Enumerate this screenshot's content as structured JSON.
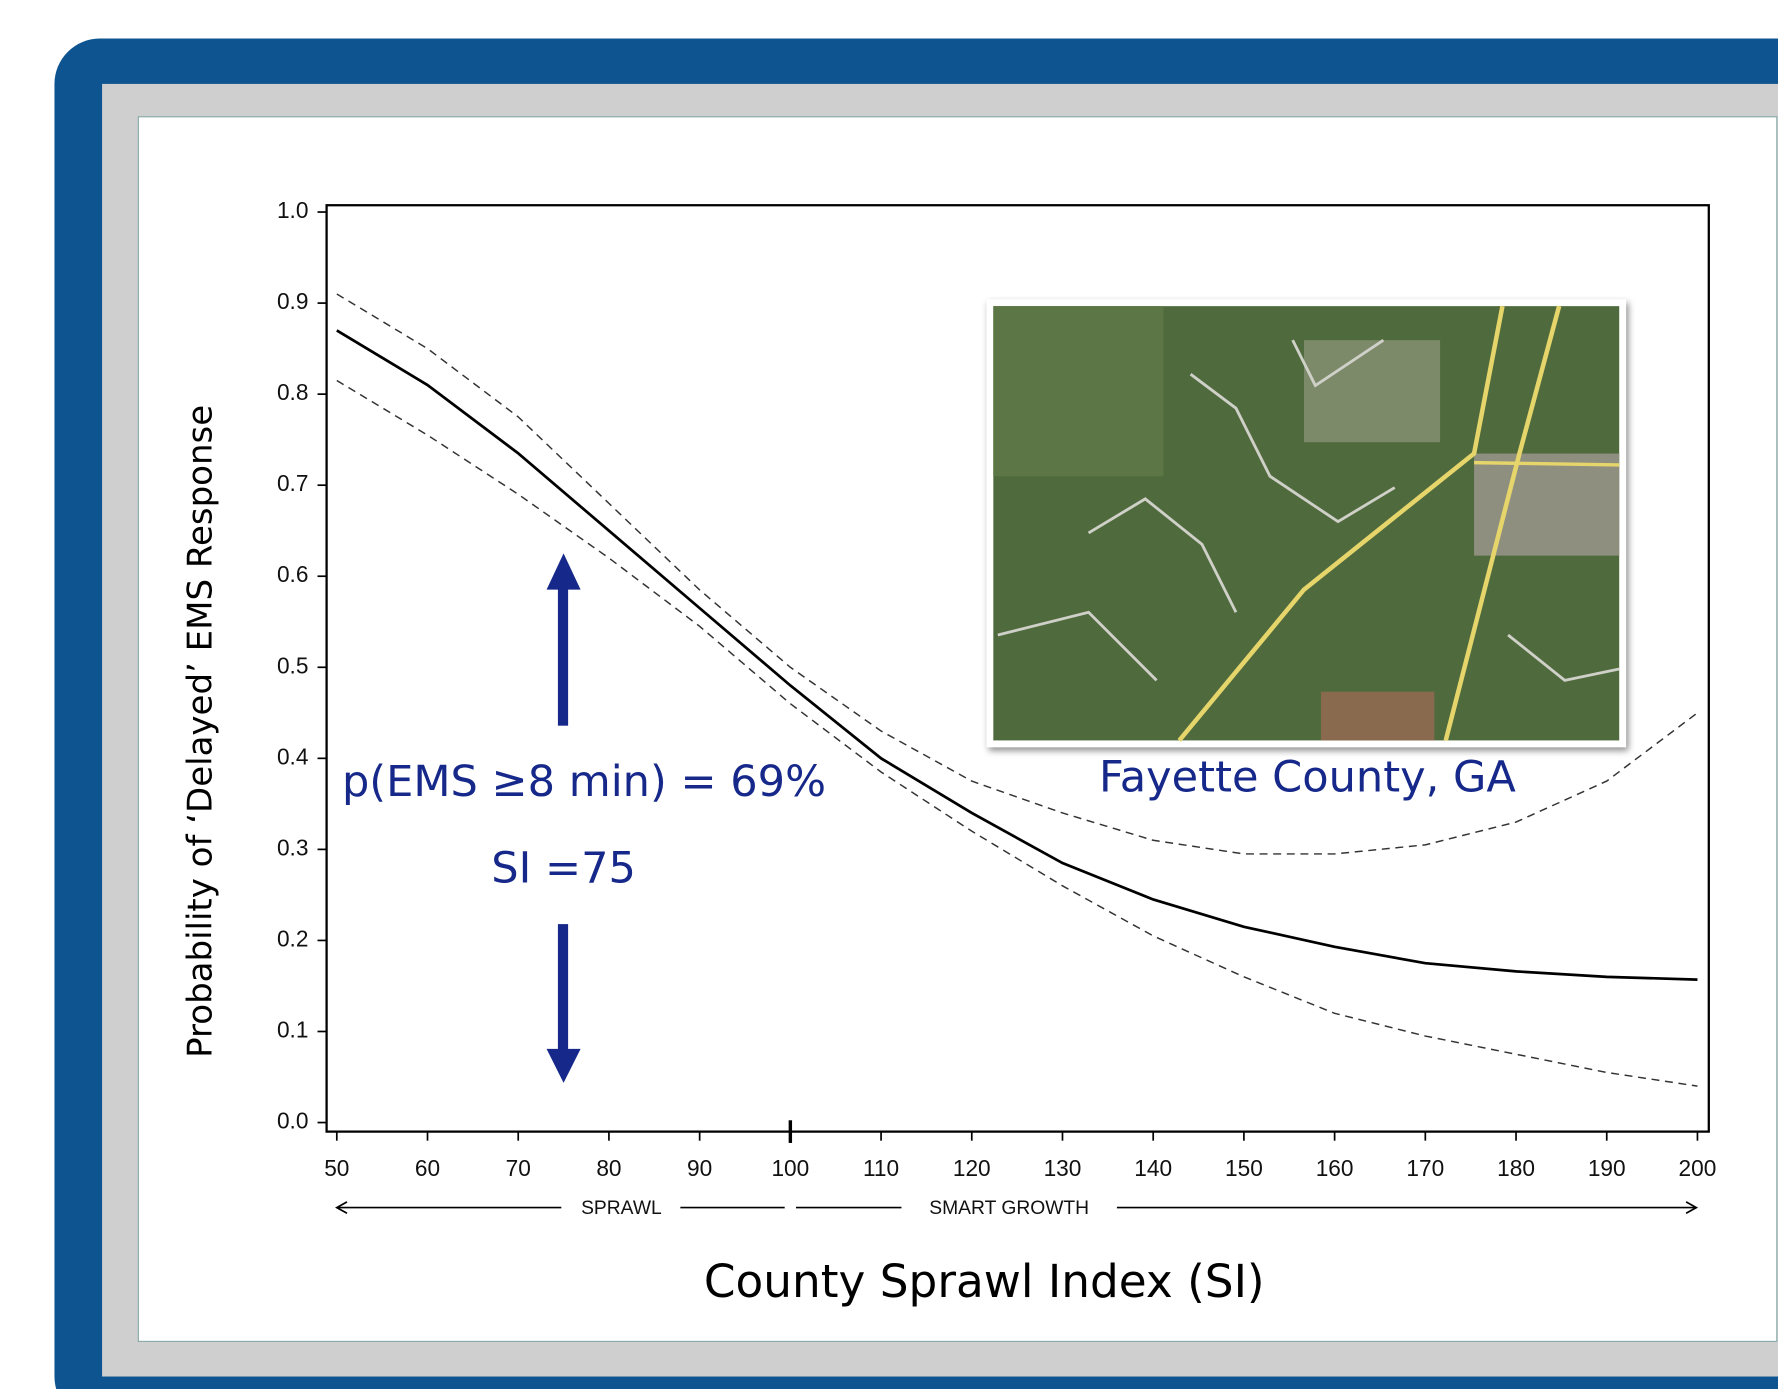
{
  "chart_data": {
    "type": "line",
    "x": [
      50,
      60,
      70,
      80,
      90,
      100,
      110,
      120,
      130,
      140,
      150,
      160,
      170,
      180,
      190,
      200
    ],
    "series": [
      {
        "color": "#000000",
        "style": "solid",
        "values": [
          0.87,
          0.81,
          0.735,
          0.65,
          0.565,
          0.48,
          0.4,
          0.34,
          0.285,
          0.245,
          0.215,
          0.193,
          0.175,
          0.166,
          0.16,
          0.157
        ]
      },
      {
        "color": "#333333",
        "style": "dashed",
        "values": [
          0.91,
          0.85,
          0.775,
          0.68,
          0.585,
          0.5,
          0.43,
          0.375,
          0.34,
          0.31,
          0.295,
          0.295,
          0.305,
          0.33,
          0.375,
          0.45
        ]
      },
      {
        "color": "#333333",
        "style": "dashed",
        "values": [
          0.815,
          0.755,
          0.69,
          0.62,
          0.545,
          0.46,
          0.385,
          0.32,
          0.26,
          0.205,
          0.16,
          0.12,
          0.095,
          0.075,
          0.055,
          0.04
        ]
      }
    ],
    "xlim": [
      50,
      200
    ],
    "ylim": [
      0,
      1
    ],
    "xticks": [
      50,
      60,
      70,
      80,
      90,
      100,
      110,
      120,
      130,
      140,
      150,
      160,
      170,
      180,
      190,
      200
    ],
    "yticks": [
      {
        "value": 0,
        "label": "0.0"
      },
      0.1,
      0.2,
      0.3,
      0.4,
      0.5,
      0.6,
      0.7,
      0.8,
      0.9,
      {
        "value": 1,
        "label": "1.0"
      }
    ],
    "xlabel": "County Sprawl Index (SI)",
    "ylabel": "Probability of ‘Delayed’ EMS Response",
    "annotations": [
      "p(EMS ≥8 min) = 69%",
      "SI =75",
      "Fayette County, GA"
    ],
    "region_labels": [
      "SPRAWL",
      "SMART GROWTH"
    ]
  }
}
